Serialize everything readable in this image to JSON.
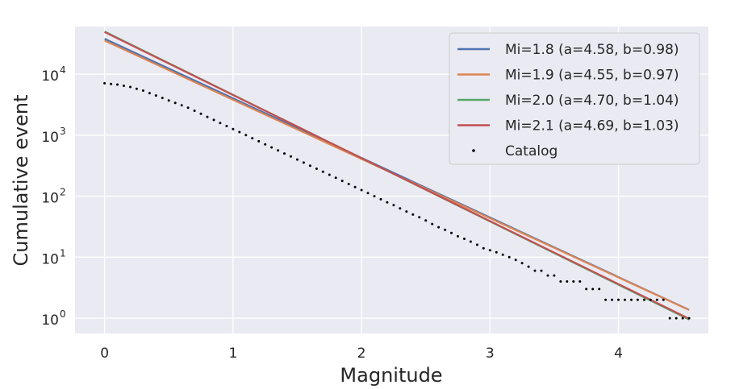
{
  "chart_data": {
    "type": "line",
    "title": "",
    "xlabel": "Magnitude",
    "ylabel": "Cumulative event",
    "xlim": [
      -0.23,
      4.7
    ],
    "ylim_log10": [
      -0.25,
      4.78
    ],
    "yscale": "log",
    "grid": true,
    "legend_position": "top-right",
    "x_ticks": [
      0,
      1,
      2,
      3,
      4
    ],
    "x_tick_labels": [
      "0",
      "1",
      "2",
      "3",
      "4"
    ],
    "y_ticks": [
      1,
      10,
      100,
      1000,
      10000
    ],
    "y_tick_bases": [
      "10",
      "10",
      "10",
      "10",
      "10"
    ],
    "y_tick_exponents": [
      "0",
      "1",
      "2",
      "3",
      "4"
    ],
    "series": [
      {
        "name": "Mi=1.8 (a=4.58, b=0.98)",
        "kind": "line",
        "color": "#4c72b0",
        "x": [
          0,
          4.55
        ],
        "y": [
          38019,
          1.37
        ]
      },
      {
        "name": "Mi=1.9 (a=4.55, b=0.97)",
        "kind": "line",
        "color": "#dd8452",
        "x": [
          0,
          4.55
        ],
        "y": [
          35481,
          1.36
        ]
      },
      {
        "name": "Mi=2.0 (a=4.70, b=1.04)",
        "kind": "line",
        "color": "#55a868",
        "x": [
          0,
          4.55
        ],
        "y": [
          50119,
          0.95
        ]
      },
      {
        "name": "Mi=2.1 (a=4.69, b=1.03)",
        "kind": "line",
        "color": "#c44e52",
        "x": [
          0,
          4.55
        ],
        "y": [
          48978,
          0.98
        ]
      },
      {
        "name": "Catalog",
        "kind": "scatter",
        "color": "#000000",
        "x": [
          0.0,
          0.05,
          0.1,
          0.15,
          0.2,
          0.25,
          0.3,
          0.35,
          0.4,
          0.45,
          0.5,
          0.55,
          0.6,
          0.65,
          0.7,
          0.75,
          0.8,
          0.85,
          0.9,
          0.95,
          1.0,
          1.05,
          1.1,
          1.15,
          1.2,
          1.25,
          1.3,
          1.35,
          1.4,
          1.45,
          1.5,
          1.55,
          1.6,
          1.65,
          1.7,
          1.75,
          1.8,
          1.85,
          1.9,
          1.95,
          2.0,
          2.05,
          2.1,
          2.15,
          2.2,
          2.25,
          2.3,
          2.35,
          2.4,
          2.45,
          2.5,
          2.55,
          2.6,
          2.65,
          2.7,
          2.75,
          2.8,
          2.85,
          2.9,
          2.95,
          3.0,
          3.05,
          3.1,
          3.15,
          3.2,
          3.25,
          3.3,
          3.35,
          3.4,
          3.45,
          3.5,
          3.55,
          3.6,
          3.65,
          3.7,
          3.75,
          3.8,
          3.85,
          3.9,
          3.95,
          4.0,
          4.05,
          4.1,
          4.15,
          4.2,
          4.25,
          4.3,
          4.35,
          4.4,
          4.45,
          4.5,
          4.55
        ],
        "y": [
          7079,
          6918,
          6761,
          6457,
          6166,
          5754,
          5370,
          4898,
          4467,
          4074,
          3715,
          3388,
          3090,
          2818,
          2512,
          2239,
          1995,
          1778,
          1585,
          1413,
          1259,
          1122,
          1000,
          891,
          794,
          708,
          631,
          562,
          501,
          447,
          398,
          355,
          316,
          282,
          251,
          224,
          200,
          178,
          158,
          141,
          126,
          112,
          100,
          89,
          79,
          71,
          63,
          56,
          50,
          45,
          40,
          35,
          31,
          28,
          25,
          22,
          20,
          18,
          16,
          14,
          13,
          12,
          11,
          10,
          9,
          8,
          7,
          6,
          6,
          5,
          5,
          4,
          4,
          4,
          4,
          3,
          3,
          3,
          2,
          2,
          2,
          2,
          2,
          2,
          2,
          2,
          2,
          2,
          1,
          1,
          1,
          1
        ]
      }
    ]
  }
}
